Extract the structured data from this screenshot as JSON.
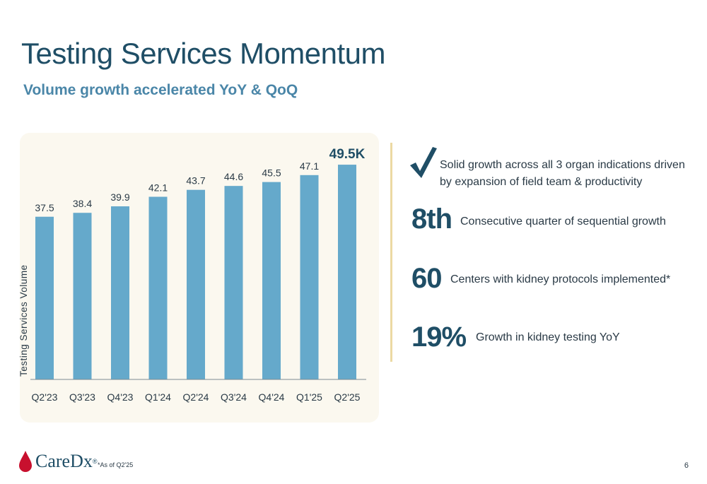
{
  "slide": {
    "title": "Testing Services Momentum",
    "subtitle": "Volume growth accelerated YoY & QoQ",
    "page_number": "6",
    "footnote": "*As of Q2'25"
  },
  "brand": {
    "logo_text": "CareDx",
    "logo_mark": "®",
    "accent_color": "#c8102e",
    "title_color": "#1f4e66"
  },
  "highlights": {
    "intro": "Solid growth across all 3 organ indications driven by expansion of field team & productivity",
    "stats": [
      {
        "value": "8th",
        "label": "Consecutive quarter of sequential growth"
      },
      {
        "value": "60",
        "label": "Centers with kidney protocols implemented*"
      },
      {
        "value": "19%",
        "label": "Growth in kidney testing YoY"
      }
    ]
  },
  "chart_data": {
    "type": "bar",
    "categories": [
      "Q2'23",
      "Q3'23",
      "Q4'23",
      "Q1'24",
      "Q2'24",
      "Q3'24",
      "Q4'24",
      "Q1'25",
      "Q2'25"
    ],
    "values": [
      37.5,
      38.4,
      39.9,
      42.1,
      43.7,
      44.6,
      45.5,
      47.1,
      49.5
    ],
    "data_labels": [
      "37.5",
      "38.4",
      "39.9",
      "42.1",
      "43.7",
      "44.6",
      "45.5",
      "47.1",
      "49.5K"
    ],
    "title": "",
    "xlabel": "",
    "ylabel": "Testing Services Volume",
    "bar_color": "#65a9cb",
    "grid": false,
    "legend": "none"
  }
}
